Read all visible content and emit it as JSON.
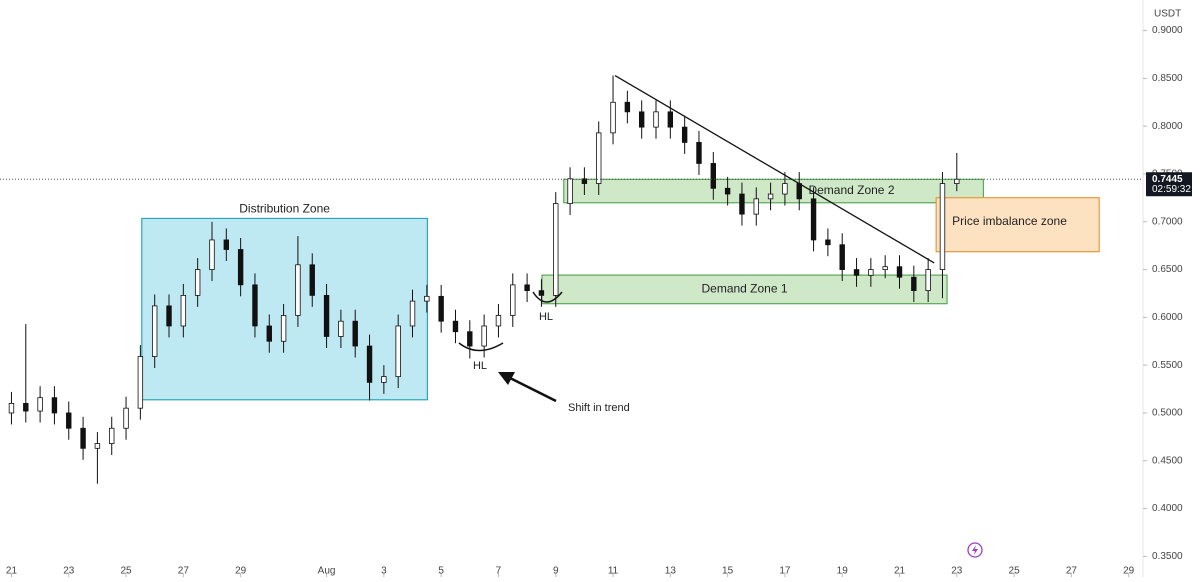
{
  "chart_data": {
    "type": "candlestick",
    "currency": "USDT",
    "last_price_label": "0.7445",
    "countdown": "02:59:32",
    "xlim": [
      -0.4,
      39.5
    ],
    "xticks": [
      {
        "value": 0,
        "label": "21"
      },
      {
        "value": 2,
        "label": "23"
      },
      {
        "value": 4,
        "label": "25"
      },
      {
        "value": 6,
        "label": "27"
      },
      {
        "value": 8,
        "label": "29"
      },
      {
        "value": 11,
        "label": "Aug"
      },
      {
        "value": 13,
        "label": "3"
      },
      {
        "value": 15,
        "label": "5"
      },
      {
        "value": 17,
        "label": "7"
      },
      {
        "value": 19,
        "label": "9"
      },
      {
        "value": 21,
        "label": "11"
      },
      {
        "value": 23,
        "label": "13"
      },
      {
        "value": 25,
        "label": "15"
      },
      {
        "value": 27,
        "label": "17"
      },
      {
        "value": 29,
        "label": "19"
      },
      {
        "value": 31,
        "label": "21"
      },
      {
        "value": 33,
        "label": "23"
      },
      {
        "value": 35,
        "label": "25"
      },
      {
        "value": 37,
        "label": "27"
      },
      {
        "value": 39,
        "label": "29"
      }
    ],
    "ylim": [
      0.3284,
      0.932
    ],
    "yticks": [
      {
        "value": 0.9,
        "label": "0.9000"
      },
      {
        "value": 0.85,
        "label": "0.8500"
      },
      {
        "value": 0.8,
        "label": "0.8000"
      },
      {
        "value": 0.75,
        "label": "0.7500"
      },
      {
        "value": 0.7,
        "label": "0.7000"
      },
      {
        "value": 0.65,
        "label": "0.6500"
      },
      {
        "value": 0.6,
        "label": "0.6000"
      },
      {
        "value": 0.55,
        "label": "0.5500"
      },
      {
        "value": 0.5,
        "label": "0.5000"
      },
      {
        "value": 0.45,
        "label": "0.4500"
      },
      {
        "value": 0.4,
        "label": "0.4000"
      },
      {
        "value": 0.35,
        "label": "0.3500"
      }
    ],
    "x": [
      0,
      0.5,
      1,
      1.5,
      2,
      2.5,
      3,
      3.5,
      4,
      4.5,
      5,
      5.5,
      6,
      6.5,
      7,
      7.5,
      8,
      8.5,
      9,
      9.5,
      10,
      10.5,
      11,
      11.5,
      12,
      12.5,
      13,
      13.5,
      14,
      14.5,
      15,
      15.5,
      16,
      16.5,
      17,
      17.5,
      18,
      18.5,
      19,
      19.5,
      20,
      20.5,
      21,
      21.5,
      22,
      22.5,
      23,
      23.5,
      24,
      24.5,
      25,
      25.5,
      26,
      26.5,
      27,
      27.5,
      28,
      28.5,
      29,
      29.5,
      30,
      30.5,
      31,
      31.5,
      32,
      32.5,
      33
    ],
    "open": [
      0.5,
      0.51,
      0.502,
      0.516,
      0.5,
      0.484,
      0.463,
      0.468,
      0.484,
      0.505,
      0.559,
      0.612,
      0.591,
      0.623,
      0.65,
      0.681,
      0.671,
      0.634,
      0.591,
      0.575,
      0.602,
      0.655,
      0.623,
      0.58,
      0.596,
      0.57,
      0.532,
      0.538,
      0.591,
      0.617,
      0.622,
      0.596,
      0.585,
      0.57,
      0.591,
      0.602,
      0.634,
      0.628,
      0.623,
      0.719,
      0.745,
      0.74,
      0.793,
      0.825,
      0.815,
      0.799,
      0.815,
      0.799,
      0.783,
      0.761,
      0.735,
      0.729,
      0.708,
      0.724,
      0.729,
      0.74,
      0.724,
      0.681,
      0.676,
      0.65,
      0.644,
      0.65,
      0.653,
      0.642,
      0.628,
      0.65,
      0.74
    ],
    "high": [
      0.522,
      0.593,
      0.528,
      0.528,
      0.512,
      0.496,
      0.48,
      0.496,
      0.517,
      0.571,
      0.624,
      0.624,
      0.635,
      0.662,
      0.7,
      0.693,
      0.683,
      0.646,
      0.603,
      0.614,
      0.685,
      0.667,
      0.635,
      0.608,
      0.608,
      0.582,
      0.55,
      0.603,
      0.629,
      0.634,
      0.634,
      0.608,
      0.597,
      0.603,
      0.614,
      0.646,
      0.646,
      0.64,
      0.731,
      0.757,
      0.757,
      0.805,
      0.853,
      0.837,
      0.827,
      0.827,
      0.827,
      0.811,
      0.795,
      0.773,
      0.747,
      0.741,
      0.736,
      0.741,
      0.752,
      0.752,
      0.736,
      0.693,
      0.688,
      0.662,
      0.662,
      0.665,
      0.665,
      0.654,
      0.662,
      0.752,
      0.772
    ],
    "low": [
      0.488,
      0.49,
      0.49,
      0.488,
      0.472,
      0.451,
      0.426,
      0.456,
      0.472,
      0.493,
      0.547,
      0.579,
      0.579,
      0.611,
      0.638,
      0.659,
      0.622,
      0.579,
      0.563,
      0.563,
      0.59,
      0.611,
      0.568,
      0.568,
      0.558,
      0.513,
      0.52,
      0.526,
      0.579,
      0.605,
      0.584,
      0.573,
      0.557,
      0.558,
      0.579,
      0.59,
      0.616,
      0.611,
      0.611,
      0.707,
      0.728,
      0.728,
      0.781,
      0.803,
      0.787,
      0.787,
      0.787,
      0.771,
      0.749,
      0.723,
      0.717,
      0.696,
      0.696,
      0.712,
      0.717,
      0.712,
      0.669,
      0.664,
      0.638,
      0.632,
      0.632,
      0.641,
      0.63,
      0.616,
      0.616,
      0.62,
      0.732
    ],
    "close": [
      0.51,
      0.502,
      0.516,
      0.5,
      0.484,
      0.463,
      0.468,
      0.484,
      0.505,
      0.559,
      0.612,
      0.591,
      0.623,
      0.65,
      0.681,
      0.671,
      0.634,
      0.591,
      0.575,
      0.602,
      0.655,
      0.623,
      0.58,
      0.596,
      0.57,
      0.532,
      0.538,
      0.591,
      0.617,
      0.622,
      0.596,
      0.585,
      0.57,
      0.591,
      0.602,
      0.634,
      0.628,
      0.623,
      0.719,
      0.745,
      0.74,
      0.793,
      0.825,
      0.815,
      0.799,
      0.815,
      0.799,
      0.783,
      0.761,
      0.735,
      0.729,
      0.708,
      0.724,
      0.729,
      0.74,
      0.724,
      0.681,
      0.676,
      0.65,
      0.644,
      0.65,
      0.653,
      0.642,
      0.628,
      0.65,
      0.74,
      0.7445
    ],
    "zones": [
      {
        "label": "Distribution Zone",
        "x": [
          4.55,
          14.52
        ],
        "y": [
          0.5138,
          0.7035
        ],
        "color": "#bfe9f2",
        "border": "#2aa7b8"
      },
      {
        "label": "Demand Zone 2",
        "x": [
          19.28,
          33.93
        ],
        "y": [
          0.7199,
          0.7444
        ],
        "color": "#cfe9c8",
        "border": "#5aa85a"
      },
      {
        "label": "Demand Zone 1",
        "x": [
          18.52,
          32.66
        ],
        "y": [
          0.6143,
          0.6442
        ],
        "color": "#cfe9c8",
        "border": "#5aa85a"
      },
      {
        "label": "Price imbalance zone",
        "x": [
          32.28,
          37.97
        ],
        "y": [
          0.6687,
          0.7252
        ],
        "color": "#fde2c2",
        "border": "#e59a3c"
      }
    ],
    "trendline": {
      "x": [
        21.07,
        32.21
      ],
      "y": [
        0.853,
        0.657
      ]
    },
    "annotations": {
      "hl_1": "HL",
      "hl_2": "HL",
      "shift": "Shift in trend"
    }
  }
}
